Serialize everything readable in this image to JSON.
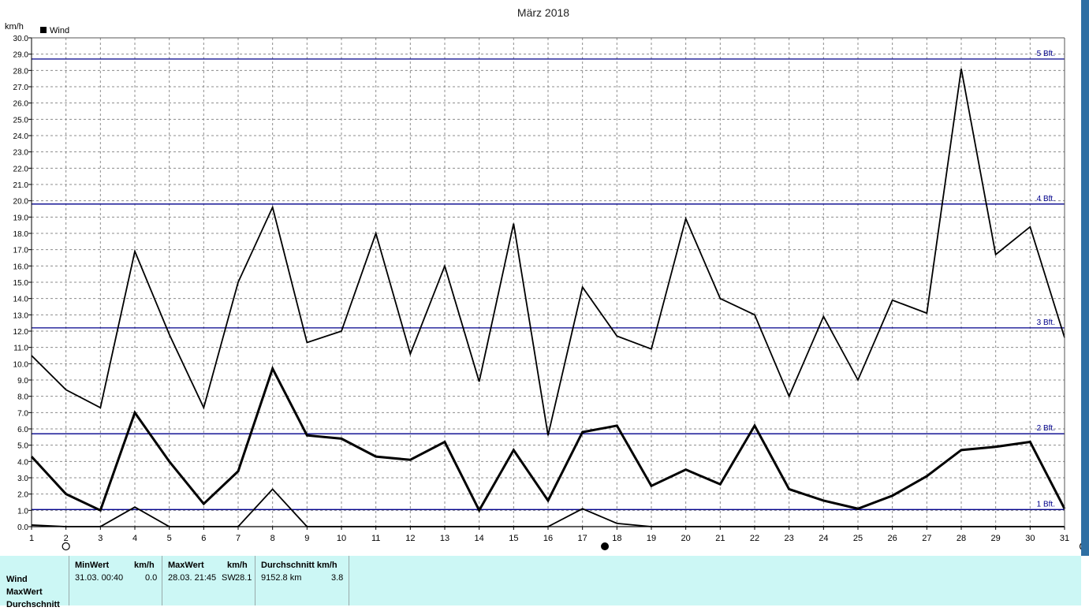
{
  "chart_data": {
    "type": "line",
    "title": "März 2018",
    "ylabel": "km/h",
    "legend": "Wind",
    "legend_color": "#000000",
    "ylim": [
      0,
      30
    ],
    "y_tick_step": 1,
    "y_tick_labels": [
      "0.0",
      "1.0",
      "2.0",
      "3.0",
      "4.0",
      "5.0",
      "6.0",
      "7.0",
      "8.0",
      "9.0",
      "10.0",
      "11.0",
      "12.0",
      "13.0",
      "14.0",
      "15.0",
      "16.0",
      "17.0",
      "18.0",
      "19.0",
      "20.0",
      "21.0",
      "22.0",
      "23.0",
      "24.0",
      "25.0",
      "26.0",
      "27.0",
      "28.0",
      "29.0",
      "30.0"
    ],
    "x": [
      1,
      2,
      3,
      4,
      5,
      6,
      7,
      8,
      9,
      10,
      11,
      12,
      13,
      14,
      15,
      16,
      17,
      18,
      19,
      20,
      21,
      22,
      23,
      24,
      25,
      26,
      27,
      28,
      29,
      30,
      31
    ],
    "grid": true,
    "series": [
      {
        "role": "max",
        "values": [
          10.5,
          8.4,
          7.3,
          16.9,
          11.8,
          7.3,
          15.0,
          19.6,
          11.3,
          12.0,
          18.0,
          10.6,
          16.0,
          8.9,
          18.6,
          5.6,
          14.7,
          11.7,
          10.9,
          18.9,
          14.0,
          13.0,
          8.0,
          12.9,
          9.0,
          13.9,
          13.1,
          28.1,
          16.7,
          18.4,
          11.6
        ]
      },
      {
        "role": "avg",
        "values": [
          4.3,
          2.0,
          1.0,
          7.0,
          4.0,
          1.4,
          3.4,
          9.7,
          5.6,
          5.4,
          4.3,
          4.1,
          5.2,
          1.0,
          4.7,
          1.6,
          5.8,
          6.2,
          2.5,
          3.5,
          2.6,
          6.2,
          2.3,
          1.6,
          1.1,
          1.9,
          3.1,
          4.7,
          4.9,
          5.2,
          1.1
        ]
      },
      {
        "role": "min",
        "values": [
          0.1,
          0.0,
          0.0,
          1.2,
          0.0,
          0.0,
          0.0,
          2.3,
          0.0,
          0.0,
          0.0,
          0.0,
          0.0,
          0.0,
          0.0,
          0.0,
          1.1,
          0.2,
          0.0,
          0.0,
          0.0,
          0.0,
          0.0,
          0.0,
          0.0,
          0.0,
          0.0,
          0.0,
          0.0,
          0.0,
          0.0
        ]
      }
    ],
    "reference_lines": [
      {
        "value": 1.05,
        "label": "1 Bft."
      },
      {
        "value": 5.7,
        "label": "2 Bft."
      },
      {
        "value": 12.2,
        "label": "3 Bft."
      },
      {
        "value": 19.8,
        "label": "4 Bft."
      },
      {
        "value": 28.7,
        "label": "5 Bft."
      }
    ],
    "reference_color": "#00008b",
    "moon_markers": [
      {
        "x": 2,
        "phase": "full-moon"
      },
      {
        "x": 17.65,
        "phase": "new-moon"
      },
      {
        "x": 31.55,
        "phase": "full-moon"
      }
    ]
  },
  "summary": {
    "row_labels": [
      "Wind",
      "MaxWert",
      "Durchschnitt"
    ],
    "columns": [
      {
        "head_left": "MinWert",
        "head_right": "km/h",
        "val_left": "31.03.  00:40",
        "val_right": "0.0"
      },
      {
        "head_left": "MaxWert",
        "head_right": "km/h",
        "val_left": "28.03.  21:45",
        "val_mid": "SW",
        "val_right": "28.1"
      },
      {
        "head_left": "Durchschnitt km/h",
        "val_left": "9152.8 km",
        "val_right": "3.8"
      }
    ],
    "background": "#ccf7f5"
  }
}
